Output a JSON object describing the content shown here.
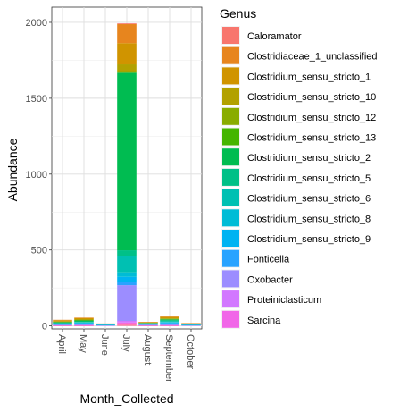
{
  "chart_data": {
    "type": "bar",
    "stacked": true,
    "title": "",
    "xlabel": "Month_Collected",
    "ylabel": "Abundance",
    "ylim": [
      -20,
      2100
    ],
    "y_ticks": [
      0,
      500,
      1000,
      1500,
      2000
    ],
    "categories": [
      "April",
      "May",
      "June",
      "July",
      "August",
      "September",
      "October"
    ],
    "legend_title": "Genus",
    "legend_position": "right",
    "grid": true,
    "series": [
      {
        "name": "Caloramator",
        "color": "#F8766D",
        "values": [
          0,
          0,
          0,
          5,
          0,
          0,
          0
        ]
      },
      {
        "name": "Clostridiaceae_1_unclassified",
        "color": "#E7851E",
        "values": [
          3,
          3,
          2,
          125,
          2,
          3,
          2
        ]
      },
      {
        "name": "Clostridium_sensu_stricto_1",
        "color": "#D09400",
        "values": [
          8,
          10,
          2,
          140,
          3,
          10,
          3
        ]
      },
      {
        "name": "Clostridium_sensu_stricto_10",
        "color": "#B2A100",
        "values": [
          0,
          0,
          0,
          50,
          0,
          0,
          0
        ]
      },
      {
        "name": "Clostridium_sensu_stricto_12",
        "color": "#89AC00",
        "values": [
          4,
          6,
          0,
          5,
          2,
          6,
          1
        ]
      },
      {
        "name": "Clostridium_sensu_stricto_13",
        "color": "#45B500",
        "values": [
          0,
          0,
          0,
          0,
          0,
          0,
          0
        ]
      },
      {
        "name": "Clostridium_sensu_stricto_2",
        "color": "#00BC51",
        "values": [
          4,
          6,
          1,
          1170,
          3,
          6,
          2
        ]
      },
      {
        "name": "Clostridium_sensu_stricto_5",
        "color": "#00C087",
        "values": [
          3,
          4,
          1,
          40,
          2,
          6,
          1
        ]
      },
      {
        "name": "Clostridium_sensu_stricto_6",
        "color": "#00C0B2",
        "values": [
          3,
          4,
          1,
          105,
          2,
          5,
          1
        ]
      },
      {
        "name": "Clostridium_sensu_stricto_8",
        "color": "#00BCD6",
        "values": [
          2,
          3,
          1,
          30,
          1,
          3,
          1
        ]
      },
      {
        "name": "Clostridium_sensu_stricto_9",
        "color": "#00B3F2",
        "values": [
          3,
          4,
          2,
          35,
          2,
          6,
          2
        ]
      },
      {
        "name": "Fonticella",
        "color": "#29A3FF",
        "values": [
          3,
          4,
          2,
          20,
          3,
          6,
          2
        ]
      },
      {
        "name": "Oxobacter",
        "color": "#9C8DFF",
        "values": [
          4,
          8,
          4,
          235,
          4,
          8,
          4
        ]
      },
      {
        "name": "Proteiniclasticum",
        "color": "#D277FF",
        "values": [
          0,
          0,
          0,
          10,
          0,
          0,
          0
        ]
      },
      {
        "name": "Sarcina",
        "color": "#F166E8",
        "values": [
          1,
          1,
          0,
          5,
          1,
          1,
          0
        ]
      },
      {
        "name": "",
        "color": "#FF61C7",
        "values": [
          1,
          1,
          0,
          10,
          1,
          1,
          0
        ]
      },
      {
        "name": "",
        "color": "#FF6C91",
        "values": [
          1,
          1,
          0,
          8,
          1,
          1,
          0
        ]
      }
    ]
  }
}
